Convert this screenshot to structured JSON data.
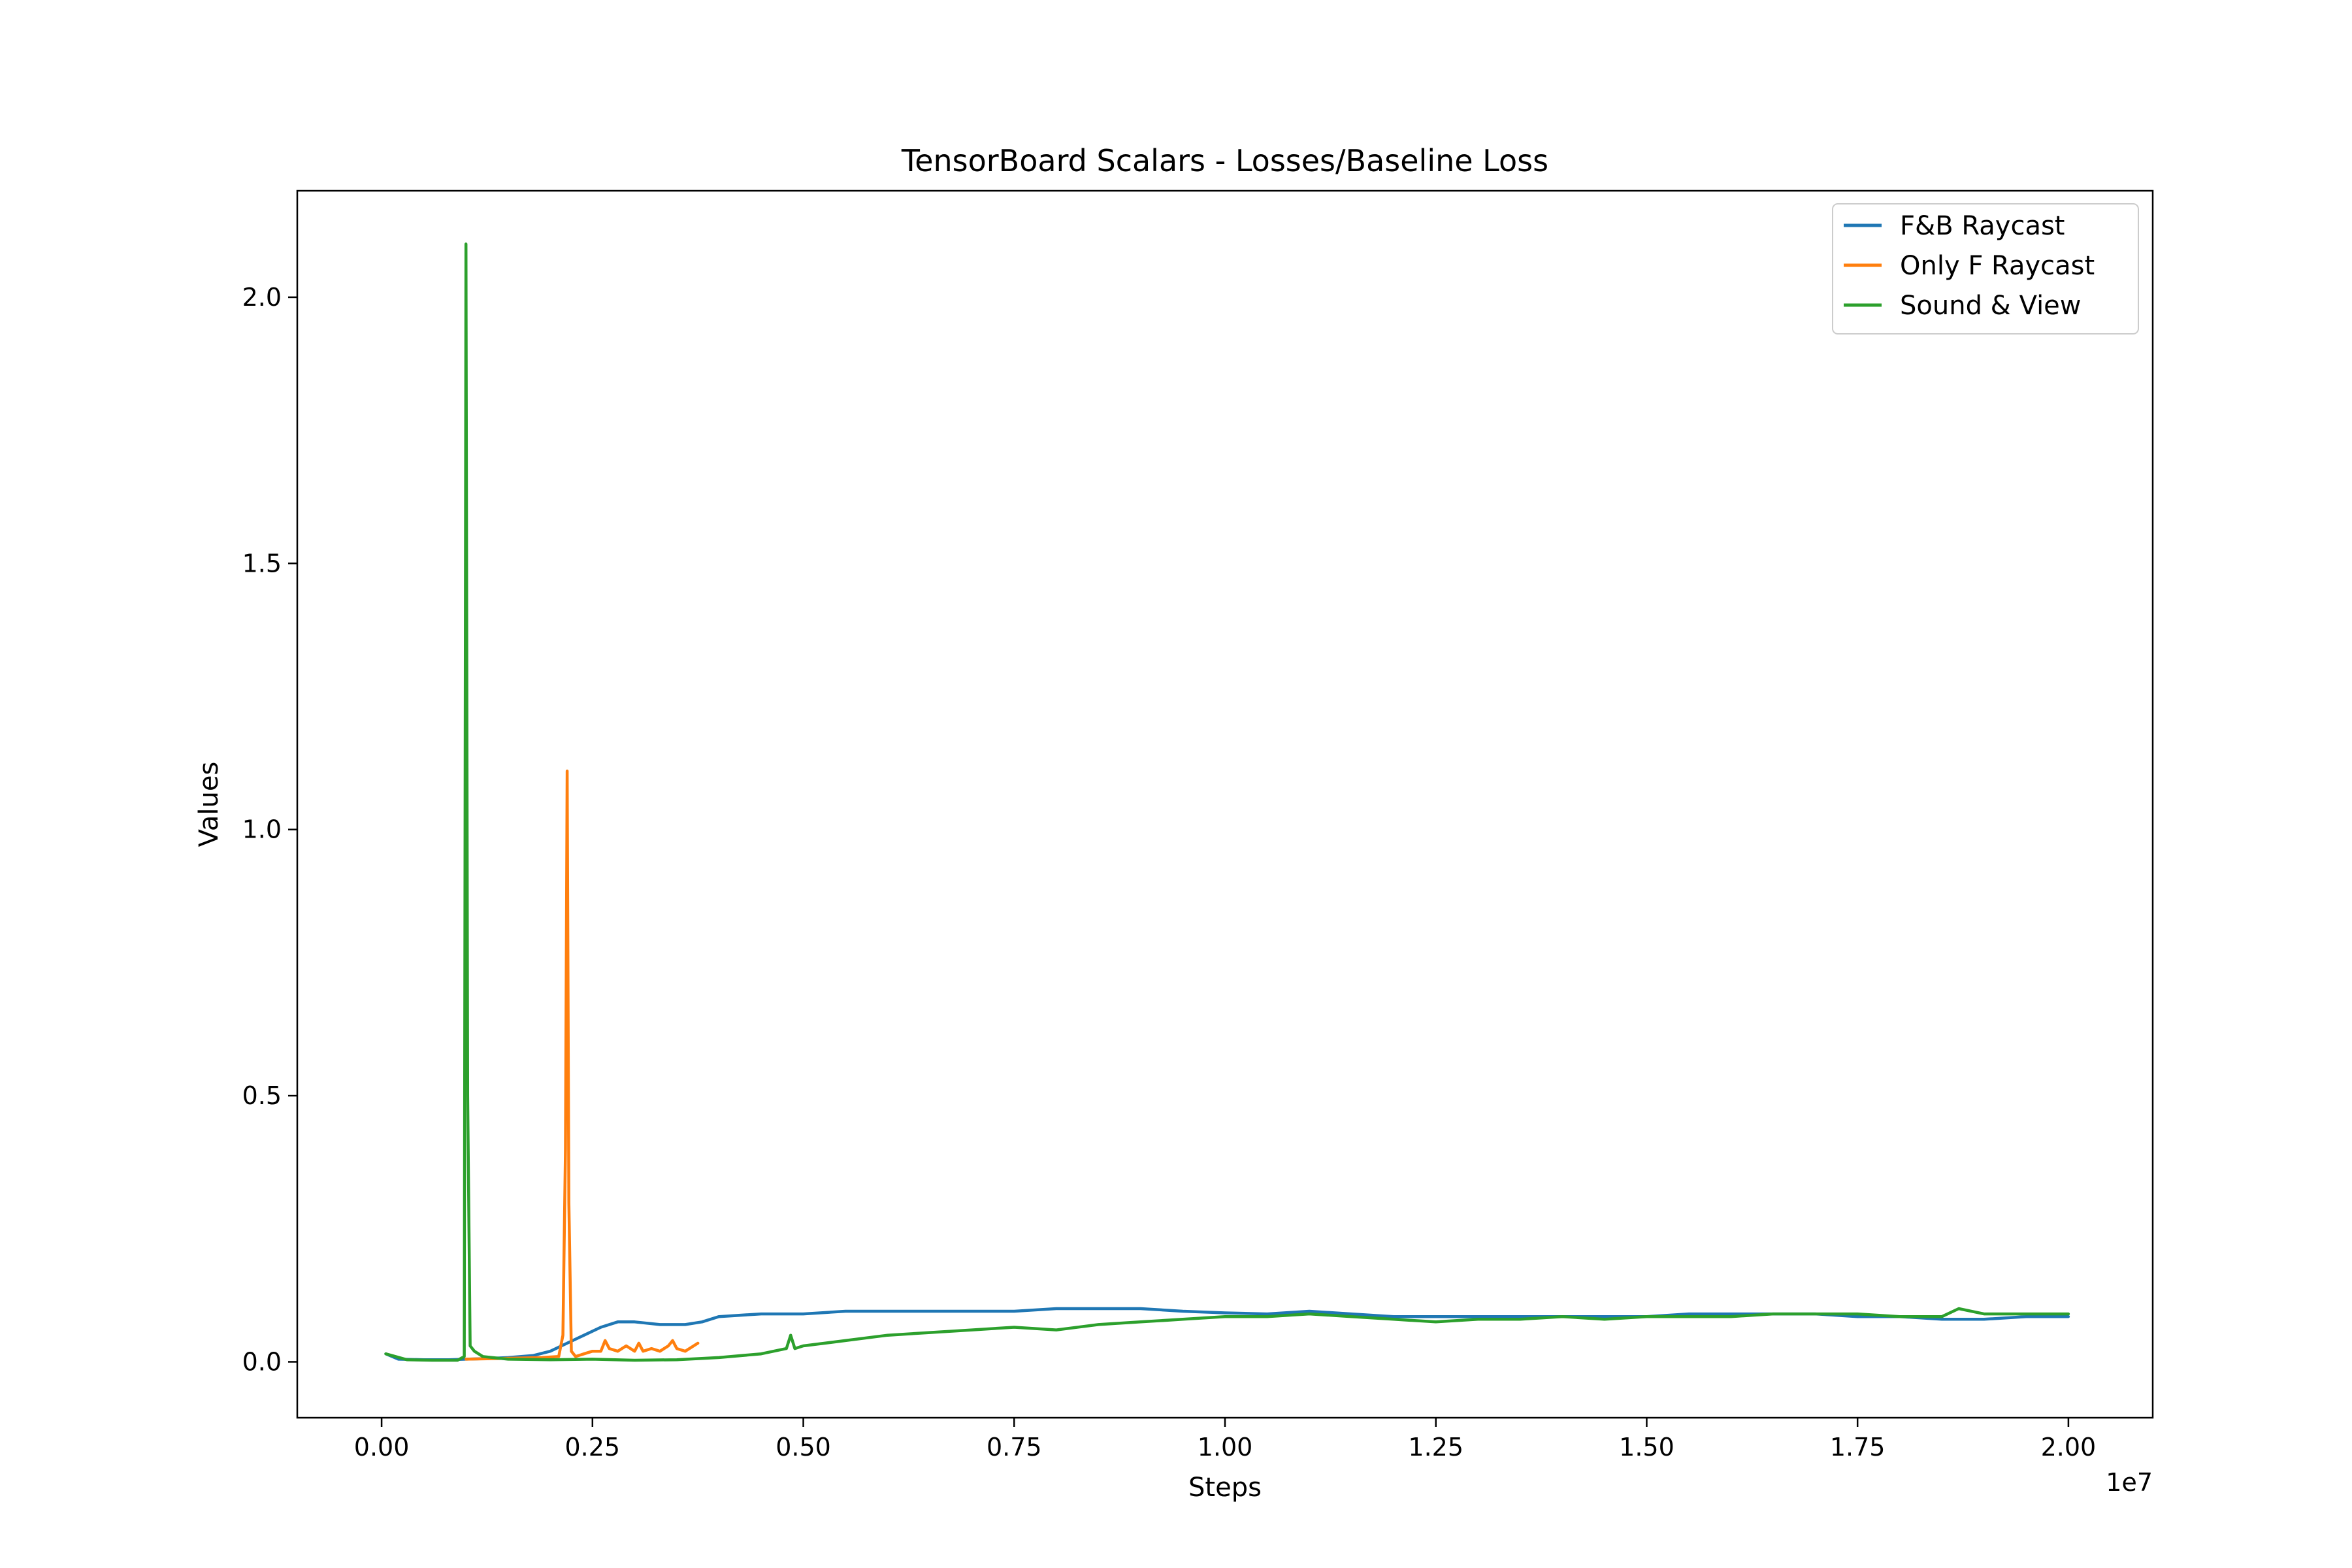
{
  "chart_data": {
    "type": "line",
    "title": "TensorBoard Scalars - Losses/Baseline Loss",
    "xlabel": "Steps",
    "ylabel": "Values",
    "x_offset_label": "1e7",
    "xlim": [
      -1000000,
      21000000
    ],
    "ylim": [
      -0.105,
      2.2
    ],
    "x_ticks": [
      0,
      2500000,
      5000000,
      7500000,
      10000000,
      12500000,
      15000000,
      17500000,
      20000000
    ],
    "x_tick_labels": [
      "0.00",
      "0.25",
      "0.50",
      "0.75",
      "1.00",
      "1.25",
      "1.50",
      "1.75",
      "2.00"
    ],
    "y_ticks": [
      0.0,
      0.5,
      1.0,
      1.5,
      2.0
    ],
    "y_tick_labels": [
      "0.0",
      "0.5",
      "1.0",
      "1.5",
      "2.0"
    ],
    "grid": false,
    "legend_position": "top-right",
    "series": [
      {
        "name": "F&B Raycast",
        "color": "#1f77b4",
        "x": [
          50000,
          200000,
          500000,
          800000,
          1000000,
          1200000,
          1500000,
          1800000,
          2000000,
          2200000,
          2400000,
          2600000,
          2800000,
          3000000,
          3300000,
          3600000,
          3800000,
          4000000,
          4500000,
          5000000,
          5500000,
          6000000,
          6500000,
          7000000,
          7500000,
          8000000,
          8500000,
          9000000,
          9500000,
          10000000,
          10500000,
          11000000,
          11500000,
          12000000,
          12500000,
          13000000,
          13500000,
          14000000,
          14500000,
          15000000,
          15500000,
          16000000,
          16500000,
          17000000,
          17500000,
          18000000,
          18500000,
          19000000,
          19500000,
          20000000
        ],
        "y": [
          0.015,
          0.005,
          0.004,
          0.004,
          0.005,
          0.006,
          0.008,
          0.012,
          0.02,
          0.035,
          0.05,
          0.065,
          0.075,
          0.075,
          0.07,
          0.07,
          0.075,
          0.085,
          0.09,
          0.09,
          0.095,
          0.095,
          0.095,
          0.095,
          0.095,
          0.1,
          0.1,
          0.1,
          0.095,
          0.092,
          0.09,
          0.095,
          0.09,
          0.085,
          0.085,
          0.085,
          0.085,
          0.085,
          0.085,
          0.085,
          0.09,
          0.09,
          0.09,
          0.09,
          0.085,
          0.085,
          0.08,
          0.08,
          0.085,
          0.085
        ]
      },
      {
        "name": "Only F Raycast",
        "color": "#ff7f0e",
        "x": [
          1000000,
          1300000,
          1600000,
          1900000,
          2100000,
          2150000,
          2180000,
          2200000,
          2220000,
          2250000,
          2300000,
          2400000,
          2500000,
          2600000,
          2650000,
          2700000,
          2800000,
          2900000,
          3000000,
          3050000,
          3100000,
          3200000,
          3300000,
          3400000,
          3450000,
          3500000,
          3600000,
          3700000,
          3750000
        ],
        "y": [
          0.005,
          0.006,
          0.007,
          0.008,
          0.01,
          0.05,
          0.4,
          1.11,
          0.3,
          0.02,
          0.01,
          0.015,
          0.02,
          0.02,
          0.04,
          0.025,
          0.02,
          0.03,
          0.02,
          0.035,
          0.02,
          0.025,
          0.02,
          0.03,
          0.04,
          0.025,
          0.02,
          0.03,
          0.035
        ]
      },
      {
        "name": "Sound & View",
        "color": "#2ca02c",
        "x": [
          50000,
          300000,
          600000,
          900000,
          980000,
          1000000,
          1020000,
          1050000,
          1100000,
          1200000,
          1500000,
          2000000,
          2500000,
          3000000,
          3500000,
          4000000,
          4500000,
          4800000,
          4850000,
          4900000,
          5000000,
          5500000,
          6000000,
          6500000,
          7000000,
          7500000,
          8000000,
          8500000,
          9000000,
          9500000,
          10000000,
          10500000,
          11000000,
          11500000,
          12000000,
          12500000,
          13000000,
          13500000,
          14000000,
          14500000,
          15000000,
          15500000,
          16000000,
          16500000,
          17000000,
          17500000,
          18000000,
          18500000,
          18700000,
          19000000,
          19500000,
          20000000
        ],
        "y": [
          0.015,
          0.004,
          0.003,
          0.003,
          0.01,
          2.1,
          0.5,
          0.03,
          0.02,
          0.01,
          0.005,
          0.004,
          0.005,
          0.003,
          0.004,
          0.008,
          0.015,
          0.025,
          0.05,
          0.025,
          0.03,
          0.04,
          0.05,
          0.055,
          0.06,
          0.065,
          0.06,
          0.07,
          0.075,
          0.08,
          0.085,
          0.085,
          0.09,
          0.085,
          0.08,
          0.075,
          0.08,
          0.08,
          0.085,
          0.08,
          0.085,
          0.085,
          0.085,
          0.09,
          0.09,
          0.09,
          0.085,
          0.085,
          0.1,
          0.09,
          0.09,
          0.09
        ]
      }
    ]
  }
}
